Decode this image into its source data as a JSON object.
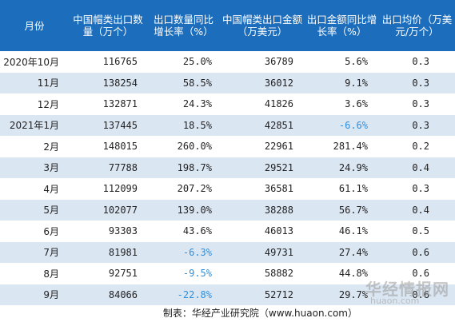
{
  "headers": [
    "月份",
    "中国帽类出口数量（万个）",
    "出口数量同比增长率（%）",
    "中国帽类出口金额（万美元）",
    "出口金额同比增长率（%）",
    "出口均价（万美元/万个）"
  ],
  "rows": [
    {
      "month": "2020年10月",
      "qty": "116765",
      "qty_yoy": "25.0%",
      "amount": "36789",
      "amount_yoy": "5.6%",
      "price": "0.3"
    },
    {
      "month": "11月",
      "qty": "138254",
      "qty_yoy": "58.5%",
      "amount": "36012",
      "amount_yoy": "9.1%",
      "price": "0.3"
    },
    {
      "month": "12月",
      "qty": "132871",
      "qty_yoy": "24.3%",
      "amount": "41826",
      "amount_yoy": "3.6%",
      "price": "0.3"
    },
    {
      "month": "2021年1月",
      "qty": "137445",
      "qty_yoy": "18.5%",
      "amount": "42851",
      "amount_yoy": "-6.6%",
      "price": "0.3"
    },
    {
      "month": "2月",
      "qty": "148015",
      "qty_yoy": "260.0%",
      "amount": "22961",
      "amount_yoy": "281.4%",
      "price": "0.2"
    },
    {
      "month": "3月",
      "qty": "77788",
      "qty_yoy": "198.7%",
      "amount": "29521",
      "amount_yoy": "24.9%",
      "price": "0.4"
    },
    {
      "month": "4月",
      "qty": "112099",
      "qty_yoy": "207.2%",
      "amount": "36581",
      "amount_yoy": "61.1%",
      "price": "0.3"
    },
    {
      "month": "5月",
      "qty": "102077",
      "qty_yoy": "139.0%",
      "amount": "38288",
      "amount_yoy": "56.7%",
      "price": "0.4"
    },
    {
      "month": "6月",
      "qty": "93303",
      "qty_yoy": "43.6%",
      "amount": "46013",
      "amount_yoy": "46.1%",
      "price": "0.5"
    },
    {
      "month": "7月",
      "qty": "81981",
      "qty_yoy": "-6.3%",
      "amount": "49731",
      "amount_yoy": "27.4%",
      "price": "0.6"
    },
    {
      "month": "8月",
      "qty": "92751",
      "qty_yoy": "-9.5%",
      "amount": "58882",
      "amount_yoy": "44.8%",
      "price": "0.6"
    },
    {
      "month": "9月",
      "qty": "84066",
      "qty_yoy": "-22.8%",
      "amount": "52712",
      "amount_yoy": "29.7%",
      "price": "0.6"
    }
  ],
  "footer": "制表：华经产业研究院（www.huaon.com）",
  "watermark": {
    "name": "华经情报网",
    "url": "huaon.com"
  },
  "colors": {
    "header_bg": "#1c6dbb",
    "stripe_bg": "#dbe6f3",
    "negative": "#2f8fdc"
  }
}
